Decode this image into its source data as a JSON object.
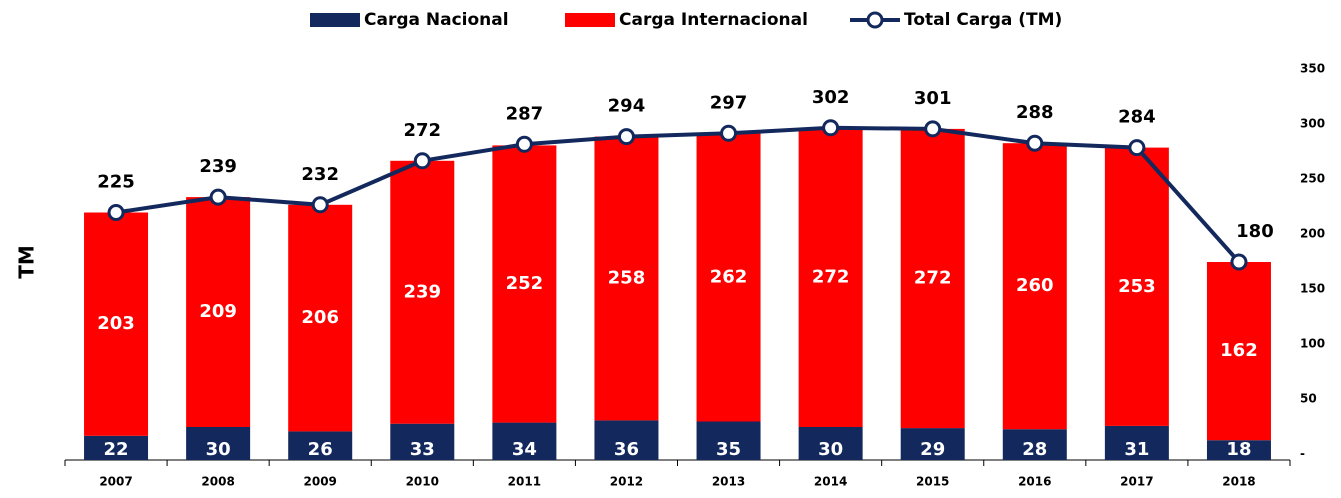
{
  "chart_data": {
    "type": "bar",
    "stacked": true,
    "y_label": "TM",
    "categories": [
      "2007",
      "2008",
      "2009",
      "2010",
      "2011",
      "2012",
      "2013",
      "2014",
      "2015",
      "2016",
      "2017",
      "2018"
    ],
    "series": [
      {
        "name": "Carga Nacional",
        "type": "bar",
        "color": "#13285c",
        "values": [
          22,
          30,
          26,
          33,
          34,
          36,
          35,
          30,
          29,
          28,
          31,
          18
        ]
      },
      {
        "name": "Carga Internacional",
        "type": "bar",
        "color": "#ff0000",
        "values": [
          203,
          209,
          206,
          239,
          252,
          258,
          262,
          272,
          272,
          260,
          253,
          162
        ]
      },
      {
        "name": "Total Carga (TM)",
        "type": "line",
        "color": "#13285c",
        "values": [
          225,
          239,
          232,
          272,
          287,
          294,
          297,
          302,
          301,
          288,
          284,
          180
        ]
      }
    ],
    "ylim": [
      0,
      350
    ],
    "yticks": [
      {
        "value": 0,
        "label": "-"
      },
      50,
      100,
      150,
      200,
      250,
      300,
      350
    ],
    "legend": "top"
  }
}
